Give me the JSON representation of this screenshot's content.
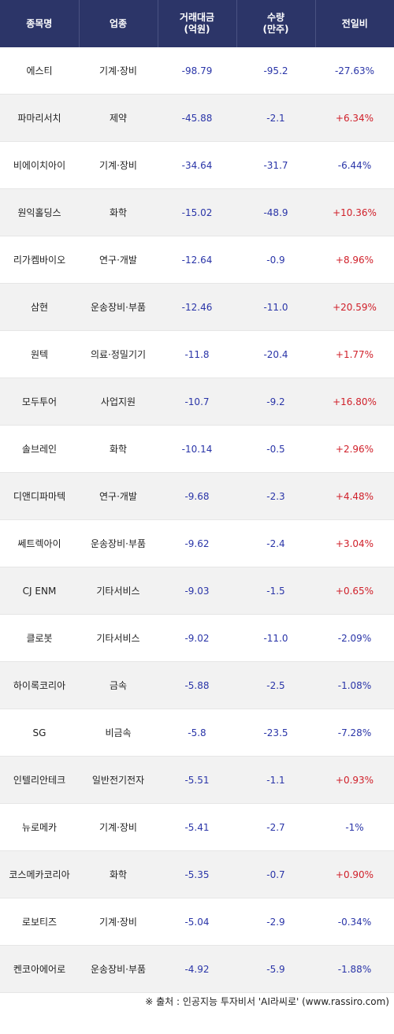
{
  "headers": [
    "종목명",
    "업종",
    "거래대금\n(억원)",
    "수량\n(만주)",
    "전일비"
  ],
  "rows": [
    {
      "name": "에스티",
      "sector": "기계·장비",
      "amount": "-98.79",
      "qty": "-95.2",
      "change": "-27.63%",
      "dir": "neg"
    },
    {
      "name": "파마리서치",
      "sector": "제약",
      "amount": "-45.88",
      "qty": "-2.1",
      "change": "+6.34%",
      "dir": "pos"
    },
    {
      "name": "비에이치아이",
      "sector": "기계·장비",
      "amount": "-34.64",
      "qty": "-31.7",
      "change": "-6.44%",
      "dir": "neg"
    },
    {
      "name": "원익홀딩스",
      "sector": "화학",
      "amount": "-15.02",
      "qty": "-48.9",
      "change": "+10.36%",
      "dir": "pos"
    },
    {
      "name": "리가켐바이오",
      "sector": "연구·개발",
      "amount": "-12.64",
      "qty": "-0.9",
      "change": "+8.96%",
      "dir": "pos"
    },
    {
      "name": "삼현",
      "sector": "운송장비·부품",
      "amount": "-12.46",
      "qty": "-11.0",
      "change": "+20.59%",
      "dir": "pos"
    },
    {
      "name": "원텍",
      "sector": "의료·정밀기기",
      "amount": "-11.8",
      "qty": "-20.4",
      "change": "+1.77%",
      "dir": "pos"
    },
    {
      "name": "모두투어",
      "sector": "사업지원",
      "amount": "-10.7",
      "qty": "-9.2",
      "change": "+16.80%",
      "dir": "pos"
    },
    {
      "name": "솔브레인",
      "sector": "화학",
      "amount": "-10.14",
      "qty": "-0.5",
      "change": "+2.96%",
      "dir": "pos"
    },
    {
      "name": "디앤디파마텍",
      "sector": "연구·개발",
      "amount": "-9.68",
      "qty": "-2.3",
      "change": "+4.48%",
      "dir": "pos"
    },
    {
      "name": "쎄트렉아이",
      "sector": "운송장비·부품",
      "amount": "-9.62",
      "qty": "-2.4",
      "change": "+3.04%",
      "dir": "pos"
    },
    {
      "name": "CJ ENM",
      "sector": "기타서비스",
      "amount": "-9.03",
      "qty": "-1.5",
      "change": "+0.65%",
      "dir": "pos"
    },
    {
      "name": "클로봇",
      "sector": "기타서비스",
      "amount": "-9.02",
      "qty": "-11.0",
      "change": "-2.09%",
      "dir": "neg"
    },
    {
      "name": "하이록코리아",
      "sector": "금속",
      "amount": "-5.88",
      "qty": "-2.5",
      "change": "-1.08%",
      "dir": "neg"
    },
    {
      "name": "SG",
      "sector": "비금속",
      "amount": "-5.8",
      "qty": "-23.5",
      "change": "-7.28%",
      "dir": "neg"
    },
    {
      "name": "인텔리안테크",
      "sector": "일반전기전자",
      "amount": "-5.51",
      "qty": "-1.1",
      "change": "+0.93%",
      "dir": "pos"
    },
    {
      "name": "뉴로메카",
      "sector": "기계·장비",
      "amount": "-5.41",
      "qty": "-2.7",
      "change": "-1%",
      "dir": "neg"
    },
    {
      "name": "코스메카코리아",
      "sector": "화학",
      "amount": "-5.35",
      "qty": "-0.7",
      "change": "+0.90%",
      "dir": "pos"
    },
    {
      "name": "로보티즈",
      "sector": "기계·장비",
      "amount": "-5.04",
      "qty": "-2.9",
      "change": "-0.34%",
      "dir": "neg"
    },
    {
      "name": "켄코아에어로",
      "sector": "운송장비·부품",
      "amount": "-4.92",
      "qty": "-5.9",
      "change": "-1.88%",
      "dir": "neg"
    }
  ],
  "footer": "※ 출처 : 인공지능 투자비서 'AI라씨로' (www.rassiro.com)",
  "colors": {
    "header_bg": "#2c3568",
    "positive": "#d0202a",
    "negative": "#2a35a8"
  }
}
